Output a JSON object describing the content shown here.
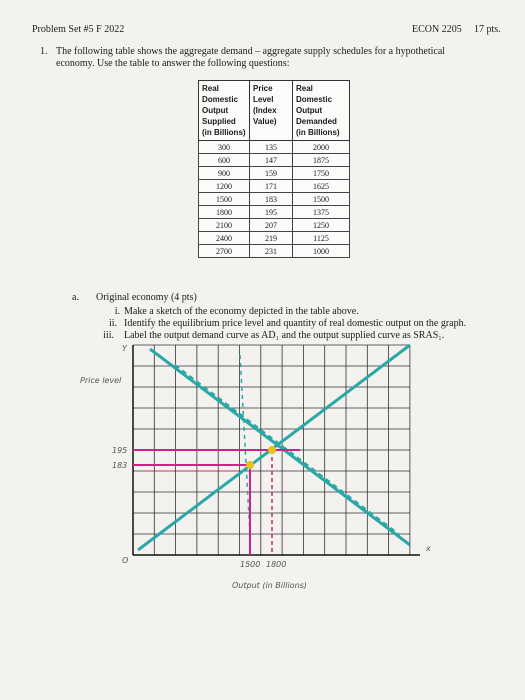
{
  "header": {
    "left": "Problem Set #5 F 2022",
    "course": "ECON 2205",
    "points": "17 pts."
  },
  "question": {
    "number": "1.",
    "text": "The following table shows the aggregate demand – aggregate supply schedules for a hypothetical economy. Use the table to answer the following questions:"
  },
  "table": {
    "columns": [
      "Real Domestic Output Supplied (in Billions)",
      "Price Level (Index Value)",
      "Real Domestic Output Demanded (in Billions)"
    ],
    "rows": [
      [
        300,
        135,
        2000
      ],
      [
        600,
        147,
        1875
      ],
      [
        900,
        159,
        1750
      ],
      [
        1200,
        171,
        1625
      ],
      [
        1500,
        183,
        1500
      ],
      [
        1800,
        195,
        1375
      ],
      [
        2100,
        207,
        1250
      ],
      [
        2400,
        219,
        1125
      ],
      [
        2700,
        231,
        1000
      ]
    ]
  },
  "part_a": {
    "label": "a.",
    "title": "Original economy (4 pts)",
    "items": [
      {
        "label": "i.",
        "text": "Make a sketch of the economy depicted in the table above."
      },
      {
        "label": "ii.",
        "text": "Identify the equilibrium price level and quantity of real domestic output on the graph."
      },
      {
        "label": "iii.",
        "text": "Label the output demand curve as AD₁ and the output supplied curve as SRAS₁."
      }
    ]
  },
  "graph": {
    "y_axis": "Price level",
    "x_axis": "Output (in Billions)",
    "origin": "O",
    "x_letter": "x",
    "y_letter": "Y",
    "price_marks": [
      "195",
      "183"
    ],
    "output_marks": [
      "1500",
      "1800"
    ]
  }
}
